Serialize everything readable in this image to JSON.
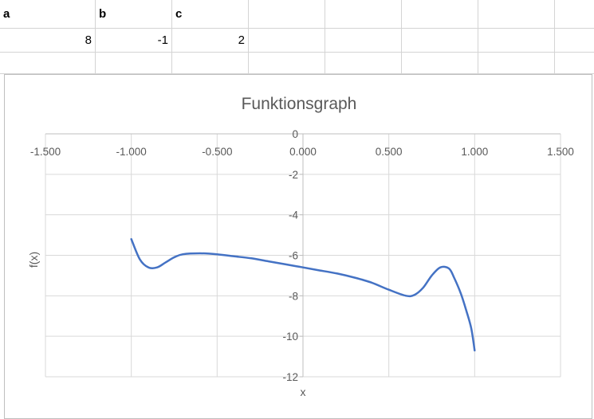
{
  "sheet": {
    "headers": [
      "a",
      "b",
      "c"
    ],
    "values": [
      "8",
      "-1",
      "2"
    ]
  },
  "chart_data": {
    "type": "scatter",
    "title": "Funktionsgraph",
    "xlabel": "x",
    "ylabel": "f(x)",
    "xlim": [
      -1.5,
      1.5
    ],
    "ylim": [
      -12,
      0
    ],
    "x_ticks": [
      "-1.500",
      "-1.000",
      "-0.500",
      "0.000",
      "0.500",
      "1.000",
      "1.500"
    ],
    "y_ticks": [
      "0",
      "-2",
      "-4",
      "-6",
      "-8",
      "-10",
      "-12"
    ],
    "grid": true,
    "line_color": "#4472c4",
    "series": [
      {
        "x": [
          -1.0,
          -0.95,
          -0.9,
          -0.85,
          -0.8,
          -0.75,
          -0.7,
          -0.6,
          -0.5,
          -0.4,
          -0.3,
          -0.2,
          -0.1,
          0.0,
          0.1,
          0.2,
          0.3,
          0.4,
          0.5,
          0.6,
          0.65,
          0.7,
          0.75,
          0.8,
          0.85,
          0.88,
          0.92,
          0.95,
          0.98,
          1.0
        ],
        "y": [
          -5.2,
          -6.2,
          -6.6,
          -6.6,
          -6.35,
          -6.1,
          -5.95,
          -5.9,
          -5.95,
          -6.05,
          -6.15,
          -6.3,
          -6.45,
          -6.6,
          -6.75,
          -6.9,
          -7.1,
          -7.35,
          -7.7,
          -8.0,
          -7.95,
          -7.6,
          -7.0,
          -6.6,
          -6.65,
          -7.1,
          -7.9,
          -8.7,
          -9.6,
          -10.7
        ]
      }
    ]
  }
}
